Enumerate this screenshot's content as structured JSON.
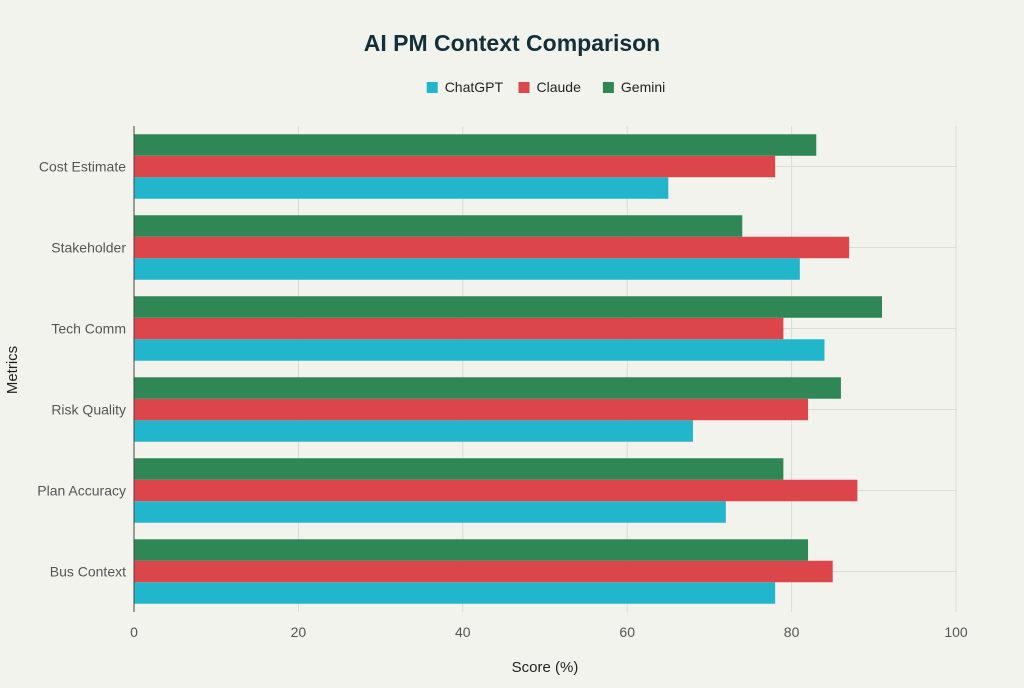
{
  "chart_data": {
    "type": "bar",
    "orientation": "horizontal",
    "title": "AI PM Context Comparison",
    "xlabel": "Score (%)",
    "ylabel": "Metrics",
    "xlim": [
      0,
      100
    ],
    "xticks": [
      0,
      20,
      40,
      60,
      80,
      100
    ],
    "grid": true,
    "legend_position": "top-center",
    "categories": [
      "Cost Estimate",
      "Stakeholder",
      "Tech Comm",
      "Risk Quality",
      "Plan Accuracy",
      "Bus Context"
    ],
    "series": [
      {
        "name": "ChatGPT",
        "color": "#21b6cc",
        "values": [
          65,
          81,
          84,
          68,
          72,
          78
        ]
      },
      {
        "name": "Claude",
        "color": "#dc4549",
        "values": [
          78,
          87,
          79,
          82,
          88,
          85
        ]
      },
      {
        "name": "Gemini",
        "color": "#2e8755",
        "values": [
          83,
          74,
          91,
          86,
          79,
          82
        ]
      }
    ]
  }
}
